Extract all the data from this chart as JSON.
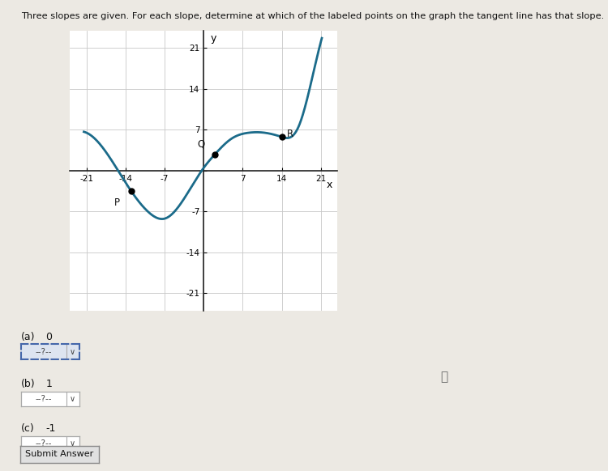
{
  "title": "Three slopes are given. For each slope, determine at which of the labeled points on the graph the tangent line has that slope.",
  "bg_color": "#ece9e3",
  "graph_bg": "#ffffff",
  "curve_color": "#1b6b8a",
  "curve_linewidth": 2.0,
  "xlim": [
    -24,
    24
  ],
  "ylim": [
    -24,
    24
  ],
  "xticks": [
    -21,
    -14,
    -7,
    0,
    7,
    14,
    21
  ],
  "yticks": [
    -21,
    -14,
    -7,
    0,
    7,
    14,
    21
  ],
  "xlabel": "x",
  "ylabel": "y",
  "key_x": [
    -21,
    -16,
    -13,
    -10,
    -7,
    -3,
    0,
    2,
    5,
    8,
    11,
    14,
    15,
    17,
    19,
    21
  ],
  "key_y": [
    6.5,
    1.0,
    -3.5,
    -7.0,
    -8.2,
    -4.0,
    0.5,
    2.8,
    5.5,
    6.5,
    6.5,
    5.8,
    5.6,
    7.5,
    14.0,
    22.0
  ],
  "points": {
    "P": [
      -13,
      -3.5
    ],
    "Q": [
      2,
      2.8
    ],
    "R": [
      14,
      5.8
    ]
  },
  "point_offsets": {
    "P": [
      -2.5,
      -2.0
    ],
    "Q": [
      -2.5,
      1.8
    ],
    "R": [
      1.5,
      0.5
    ]
  },
  "questions": [
    {
      "label": "(a)",
      "slope": "0",
      "dotted": true
    },
    {
      "label": "(b)",
      "slope": "1",
      "dotted": false
    },
    {
      "label": "(c)",
      "slope": "-1",
      "dotted": false
    }
  ],
  "submit_button": "Submit Answer",
  "grid_color": "#c8c8c8",
  "axis_color": "#222222",
  "point_color": "#000000",
  "point_size": 5,
  "tick_fontsize": 7.5,
  "axis_label_fontsize": 9
}
